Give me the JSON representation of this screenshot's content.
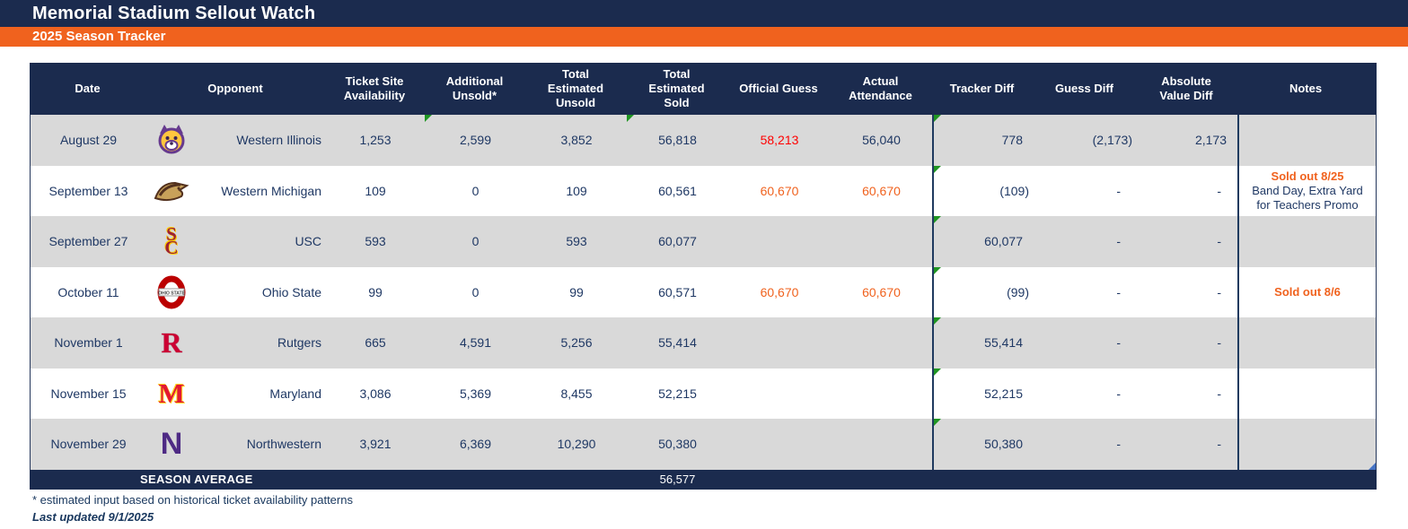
{
  "banner": {
    "title": "Memorial Stadium Sellout Watch",
    "subtitle": "2025 Season Tracker"
  },
  "colors": {
    "navy": "#1B2B4E",
    "accent_orange": "#F0621E",
    "alert_red": "#FF0000",
    "row_gray": "#D9D9D9",
    "text_navy": "#1F3864",
    "green_flag": "#1F9522",
    "blue_marker": "#4472C4"
  },
  "table": {
    "columns": [
      {
        "id": "date",
        "label": "Date"
      },
      {
        "id": "opponent",
        "label": "Opponent"
      },
      {
        "id": "ticket-site-availability",
        "label": "Ticket Site\nAvailability"
      },
      {
        "id": "additional-unsold",
        "label": "Additional\nUnsold*"
      },
      {
        "id": "total-estimated-unsold",
        "label": "Total\nEstimated\nUnsold"
      },
      {
        "id": "total-estimated-sold",
        "label": "Total\nEstimated\nSold"
      },
      {
        "id": "official-guess",
        "label": "Official Guess"
      },
      {
        "id": "actual-attendance",
        "label": "Actual\nAttendance"
      },
      {
        "id": "tracker-diff",
        "label": "Tracker Diff"
      },
      {
        "id": "guess-diff",
        "label": "Guess Diff"
      },
      {
        "id": "absolute-value-diff",
        "label": "Absolute\nValue Diff"
      },
      {
        "id": "notes",
        "label": "Notes"
      }
    ],
    "rows": [
      {
        "date": "August 29",
        "opponent": "Western Illinois",
        "logo": "western-illinois-bulldog-logo",
        "ticket_site_availability": "1,253",
        "additional_unsold": "2,599",
        "total_estimated_unsold": "3,852",
        "total_estimated_sold": "56,818",
        "official_guess": "58,213",
        "official_guess_color": "#FF0000",
        "actual_attendance": "56,040",
        "tracker_diff": "778",
        "guess_diff": "(2,173)",
        "absolute_value_diff": "2,173",
        "notes": [],
        "flags": {
          "additional_unsold": true,
          "total_estimated_sold": true,
          "tracker_diff": true
        }
      },
      {
        "date": "September 13",
        "opponent": "Western Michigan",
        "logo": "western-michigan-bronco-logo",
        "ticket_site_availability": "109",
        "additional_unsold": "0",
        "total_estimated_unsold": "109",
        "total_estimated_sold": "60,561",
        "official_guess": "60,670",
        "official_guess_color": "#F0621E",
        "actual_attendance": "60,670",
        "actual_attendance_color": "#F0621E",
        "tracker_diff": "(109)",
        "guess_diff": "-",
        "absolute_value_diff": "-",
        "notes": [
          {
            "text": "Sold out 8/25",
            "highlight": true
          },
          {
            "text": "Band Day, Extra Yard",
            "highlight": false
          },
          {
            "text": "for Teachers Promo",
            "highlight": false
          }
        ],
        "flags": {
          "tracker_diff": true
        }
      },
      {
        "date": "September 27",
        "opponent": "USC",
        "logo": "usc-sc-logo",
        "ticket_site_availability": "593",
        "additional_unsold": "0",
        "total_estimated_unsold": "593",
        "total_estimated_sold": "60,077",
        "official_guess": "",
        "actual_attendance": "",
        "tracker_diff": "60,077",
        "guess_diff": "-",
        "absolute_value_diff": "-",
        "notes": [],
        "flags": {
          "tracker_diff": true
        }
      },
      {
        "date": "October 11",
        "opponent": "Ohio State",
        "logo": "ohio-state-o-logo",
        "ticket_site_availability": "99",
        "additional_unsold": "0",
        "total_estimated_unsold": "99",
        "total_estimated_sold": "60,571",
        "official_guess": "60,670",
        "official_guess_color": "#F0621E",
        "actual_attendance": "60,670",
        "actual_attendance_color": "#F0621E",
        "tracker_diff": "(99)",
        "guess_diff": "-",
        "absolute_value_diff": "-",
        "notes": [
          {
            "text": "Sold out 8/6",
            "highlight": true
          }
        ],
        "flags": {
          "tracker_diff": true
        }
      },
      {
        "date": "November 1",
        "opponent": "Rutgers",
        "logo": "rutgers-r-logo",
        "ticket_site_availability": "665",
        "additional_unsold": "4,591",
        "total_estimated_unsold": "5,256",
        "total_estimated_sold": "55,414",
        "official_guess": "",
        "actual_attendance": "",
        "tracker_diff": "55,414",
        "guess_diff": "-",
        "absolute_value_diff": "-",
        "notes": [],
        "flags": {
          "tracker_diff": true
        }
      },
      {
        "date": "November 15",
        "opponent": "Maryland",
        "logo": "maryland-m-logo",
        "ticket_site_availability": "3,086",
        "additional_unsold": "5,369",
        "total_estimated_unsold": "8,455",
        "total_estimated_sold": "52,215",
        "official_guess": "",
        "actual_attendance": "",
        "tracker_diff": "52,215",
        "guess_diff": "-",
        "absolute_value_diff": "-",
        "notes": [],
        "flags": {
          "tracker_diff": true
        }
      },
      {
        "date": "November 29",
        "opponent": "Northwestern",
        "logo": "northwestern-n-logo",
        "ticket_site_availability": "3,921",
        "additional_unsold": "6,369",
        "total_estimated_unsold": "10,290",
        "total_estimated_sold": "50,380",
        "official_guess": "",
        "actual_attendance": "",
        "tracker_diff": "50,380",
        "guess_diff": "-",
        "absolute_value_diff": "-",
        "notes": [],
        "flags": {
          "tracker_diff": true
        },
        "blue_corner": true
      }
    ],
    "season_average": {
      "label": "SEASON AVERAGE",
      "value": "56,577"
    }
  },
  "footnotes": {
    "estimate_note": "* estimated input based on historical ticket availability patterns",
    "last_updated": "Last updated 9/1/2025"
  }
}
